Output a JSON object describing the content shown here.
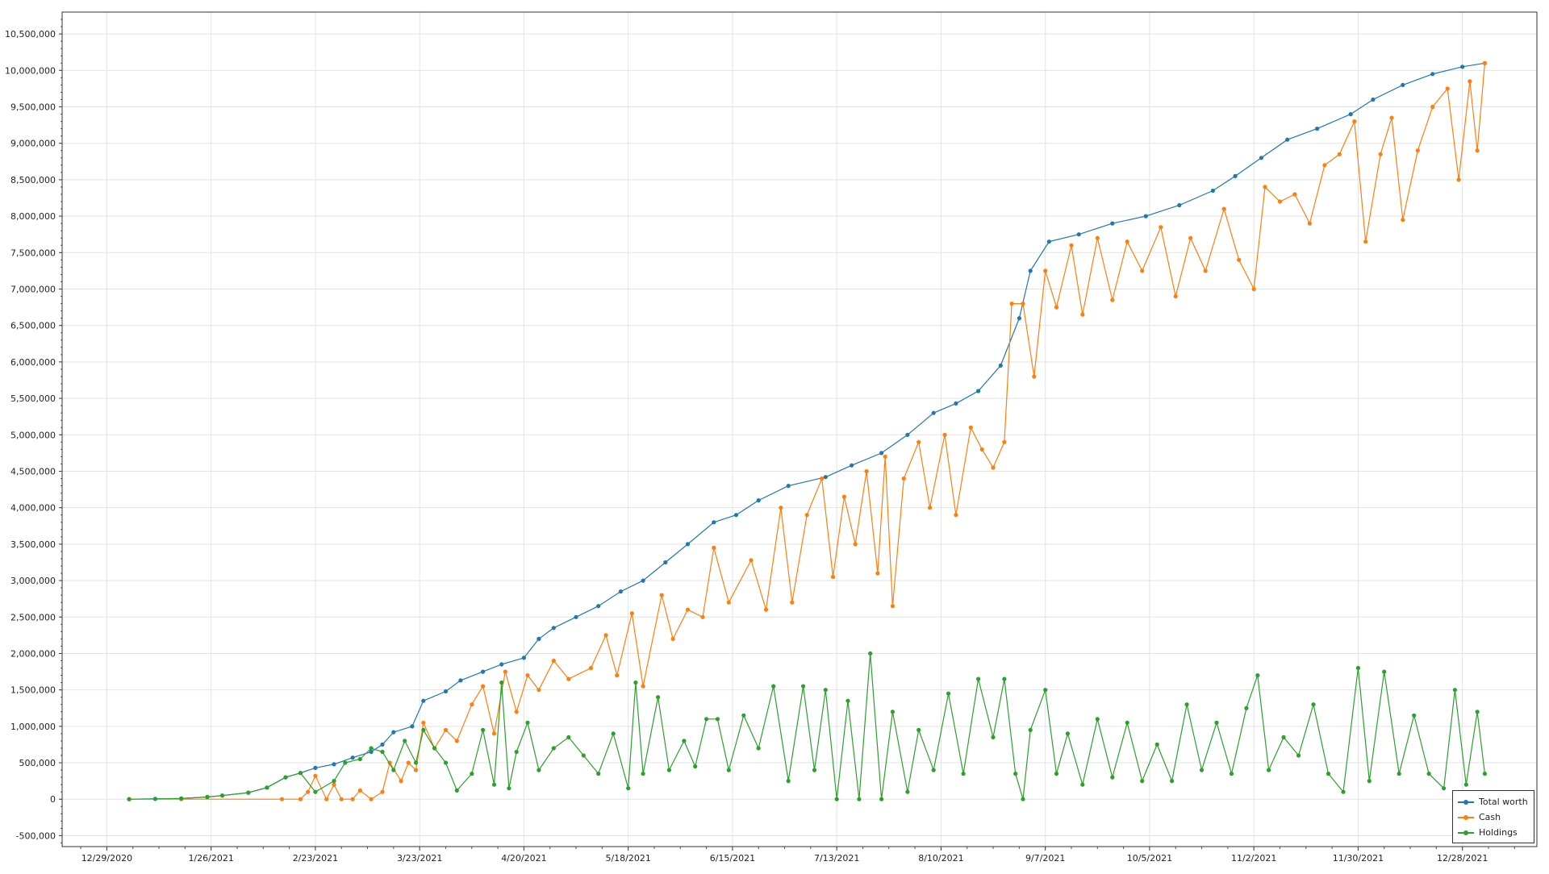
{
  "chart_data": {
    "type": "line",
    "title": "",
    "xlabel": "",
    "ylabel": "",
    "x_ticks": [
      "12/29/2020",
      "1/26/2021",
      "2/23/2021",
      "3/23/2021",
      "4/20/2021",
      "5/18/2021",
      "6/15/2021",
      "7/13/2021",
      "8/10/2021",
      "9/7/2021",
      "10/5/2021",
      "11/2/2021",
      "11/30/2021",
      "12/28/2021"
    ],
    "xlim": [
      "12/17/2020",
      "1/17/2022"
    ],
    "ylim": [
      -650000,
      10800000
    ],
    "y_ticks": [
      "-500,000",
      "0",
      "500,000",
      "1,000,000",
      "1,500,000",
      "2,000,000",
      "2,500,000",
      "3,000,000",
      "3,500,000",
      "4,000,000",
      "4,500,000",
      "5,000,000",
      "5,500,000",
      "6,000,000",
      "6,500,000",
      "7,000,000",
      "7,500,000",
      "8,000,000",
      "8,500,000",
      "9,000,000",
      "9,500,000",
      "10,000,000",
      "10,500,000"
    ],
    "grid": true,
    "legend_position": "bottom-right",
    "series": [
      {
        "name": "Total worth",
        "color": "#1f77b4",
        "points": [
          [
            "1/4/2021",
            0
          ],
          [
            "1/11/2021",
            5000
          ],
          [
            "1/18/2021",
            10000
          ],
          [
            "1/25/2021",
            30000
          ],
          [
            "1/29/2021",
            50000
          ],
          [
            "2/5/2021",
            90000
          ],
          [
            "2/10/2021",
            160000
          ],
          [
            "2/15/2021",
            300000
          ],
          [
            "2/19/2021",
            360000
          ],
          [
            "2/23/2021",
            430000
          ],
          [
            "2/28/2021",
            480000
          ],
          [
            "3/5/2021",
            570000
          ],
          [
            "3/10/2021",
            650000
          ],
          [
            "3/13/2021",
            750000
          ],
          [
            "3/16/2021",
            920000
          ],
          [
            "3/21/2021",
            1000000
          ],
          [
            "3/24/2021",
            1350000
          ],
          [
            "3/30/2021",
            1480000
          ],
          [
            "4/3/2021",
            1630000
          ],
          [
            "4/9/2021",
            1750000
          ],
          [
            "4/14/2021",
            1850000
          ],
          [
            "4/20/2021",
            1940000
          ],
          [
            "4/24/2021",
            2200000
          ],
          [
            "4/28/2021",
            2350000
          ],
          [
            "5/4/2021",
            2500000
          ],
          [
            "5/10/2021",
            2650000
          ],
          [
            "5/16/2021",
            2850000
          ],
          [
            "5/22/2021",
            3000000
          ],
          [
            "5/28/2021",
            3250000
          ],
          [
            "6/3/2021",
            3500000
          ],
          [
            "6/10/2021",
            3800000
          ],
          [
            "6/16/2021",
            3900000
          ],
          [
            "6/22/2021",
            4100000
          ],
          [
            "6/30/2021",
            4300000
          ],
          [
            "7/10/2021",
            4420000
          ],
          [
            "7/17/2021",
            4580000
          ],
          [
            "7/25/2021",
            4750000
          ],
          [
            "8/1/2021",
            5000000
          ],
          [
            "8/8/2021",
            5300000
          ],
          [
            "8/14/2021",
            5430000
          ],
          [
            "8/20/2021",
            5600000
          ],
          [
            "8/26/2021",
            5950000
          ],
          [
            "8/31/2021",
            6600000
          ],
          [
            "9/3/2021",
            7250000
          ],
          [
            "9/8/2021",
            7650000
          ],
          [
            "9/16/2021",
            7750000
          ],
          [
            "9/25/2021",
            7900000
          ],
          [
            "10/4/2021",
            8000000
          ],
          [
            "10/13/2021",
            8150000
          ],
          [
            "10/22/2021",
            8350000
          ],
          [
            "10/28/2021",
            8550000
          ],
          [
            "11/4/2021",
            8800000
          ],
          [
            "11/11/2021",
            9050000
          ],
          [
            "11/19/2021",
            9200000
          ],
          [
            "11/28/2021",
            9400000
          ],
          [
            "12/4/2021",
            9600000
          ],
          [
            "12/12/2021",
            9800000
          ],
          [
            "12/20/2021",
            9950000
          ],
          [
            "12/28/2021",
            10050000
          ],
          [
            "1/3/2022",
            10100000
          ]
        ]
      },
      {
        "name": "Cash",
        "color": "#ff7f0e",
        "points": [
          [
            "1/4/2021",
            0
          ],
          [
            "1/18/2021",
            0
          ],
          [
            "2/14/2021",
            0
          ],
          [
            "2/19/2021",
            0
          ],
          [
            "2/21/2021",
            100000
          ],
          [
            "2/23/2021",
            320000
          ],
          [
            "2/26/2021",
            0
          ],
          [
            "2/28/2021",
            200000
          ],
          [
            "3/2/2021",
            0
          ],
          [
            "3/5/2021",
            0
          ],
          [
            "3/7/2021",
            120000
          ],
          [
            "3/10/2021",
            0
          ],
          [
            "3/13/2021",
            100000
          ],
          [
            "3/15/2021",
            500000
          ],
          [
            "3/18/2021",
            250000
          ],
          [
            "3/20/2021",
            500000
          ],
          [
            "3/22/2021",
            400000
          ],
          [
            "3/24/2021",
            1050000
          ],
          [
            "3/27/2021",
            700000
          ],
          [
            "3/30/2021",
            950000
          ],
          [
            "4/2/2021",
            800000
          ],
          [
            "4/6/2021",
            1300000
          ],
          [
            "4/9/2021",
            1550000
          ],
          [
            "4/12/2021",
            900000
          ],
          [
            "4/15/2021",
            1750000
          ],
          [
            "4/18/2021",
            1200000
          ],
          [
            "4/21/2021",
            1700000
          ],
          [
            "4/24/2021",
            1500000
          ],
          [
            "4/28/2021",
            1900000
          ],
          [
            "5/2/2021",
            1650000
          ],
          [
            "5/8/2021",
            1800000
          ],
          [
            "5/12/2021",
            2250000
          ],
          [
            "5/15/2021",
            1700000
          ],
          [
            "5/19/2021",
            2550000
          ],
          [
            "5/22/2021",
            1550000
          ],
          [
            "5/27/2021",
            2800000
          ],
          [
            "5/30/2021",
            2200000
          ],
          [
            "6/3/2021",
            2600000
          ],
          [
            "6/7/2021",
            2500000
          ],
          [
            "6/10/2021",
            3450000
          ],
          [
            "6/14/2021",
            2700000
          ],
          [
            "6/20/2021",
            3280000
          ],
          [
            "6/24/2021",
            2600000
          ],
          [
            "6/28/2021",
            4000000
          ],
          [
            "7/1/2021",
            2700000
          ],
          [
            "7/5/2021",
            3900000
          ],
          [
            "7/9/2021",
            4400000
          ],
          [
            "7/12/2021",
            3050000
          ],
          [
            "7/15/2021",
            4150000
          ],
          [
            "7/18/2021",
            3500000
          ],
          [
            "7/21/2021",
            4500000
          ],
          [
            "7/24/2021",
            3100000
          ],
          [
            "7/26/2021",
            4700000
          ],
          [
            "7/28/2021",
            2650000
          ],
          [
            "7/31/2021",
            4400000
          ],
          [
            "8/4/2021",
            4900000
          ],
          [
            "8/7/2021",
            4000000
          ],
          [
            "8/11/2021",
            5000000
          ],
          [
            "8/14/2021",
            3900000
          ],
          [
            "8/18/2021",
            5100000
          ],
          [
            "8/21/2021",
            4800000
          ],
          [
            "8/24/2021",
            4550000
          ],
          [
            "8/27/2021",
            4900000
          ],
          [
            "8/29/2021",
            6800000
          ],
          [
            "9/1/2021",
            6800000
          ],
          [
            "9/4/2021",
            5800000
          ],
          [
            "9/7/2021",
            7250000
          ],
          [
            "9/10/2021",
            6750000
          ],
          [
            "9/14/2021",
            7600000
          ],
          [
            "9/17/2021",
            6650000
          ],
          [
            "9/21/2021",
            7700000
          ],
          [
            "9/25/2021",
            6850000
          ],
          [
            "9/29/2021",
            7650000
          ],
          [
            "10/3/2021",
            7250000
          ],
          [
            "10/8/2021",
            7850000
          ],
          [
            "10/12/2021",
            6900000
          ],
          [
            "10/16/2021",
            7700000
          ],
          [
            "10/20/2021",
            7250000
          ],
          [
            "10/25/2021",
            8100000
          ],
          [
            "10/29/2021",
            7400000
          ],
          [
            "11/2/2021",
            7000000
          ],
          [
            "11/5/2021",
            8400000
          ],
          [
            "11/9/2021",
            8200000
          ],
          [
            "11/13/2021",
            8300000
          ],
          [
            "11/17/2021",
            7900000
          ],
          [
            "11/21/2021",
            8700000
          ],
          [
            "11/25/2021",
            8850000
          ],
          [
            "11/29/2021",
            9300000
          ],
          [
            "12/2/2021",
            7650000
          ],
          [
            "12/6/2021",
            8850000
          ],
          [
            "12/9/2021",
            9350000
          ],
          [
            "12/12/2021",
            7950000
          ],
          [
            "12/16/2021",
            8900000
          ],
          [
            "12/20/2021",
            9500000
          ],
          [
            "12/24/2021",
            9750000
          ],
          [
            "12/27/2021",
            8500000
          ],
          [
            "12/30/2021",
            9850000
          ],
          [
            "1/1/2022",
            8900000
          ],
          [
            "1/3/2022",
            10100000
          ]
        ]
      },
      {
        "name": "Holdings",
        "color": "#2ca02c",
        "points": [
          [
            "1/4/2021",
            0
          ],
          [
            "1/11/2021",
            5000
          ],
          [
            "1/18/2021",
            10000
          ],
          [
            "1/25/2021",
            30000
          ],
          [
            "1/29/2021",
            50000
          ],
          [
            "2/5/2021",
            90000
          ],
          [
            "2/10/2021",
            160000
          ],
          [
            "2/15/2021",
            300000
          ],
          [
            "2/19/2021",
            360000
          ],
          [
            "2/23/2021",
            100000
          ],
          [
            "2/28/2021",
            250000
          ],
          [
            "3/3/2021",
            500000
          ],
          [
            "3/7/2021",
            550000
          ],
          [
            "3/10/2021",
            700000
          ],
          [
            "3/13/2021",
            650000
          ],
          [
            "3/16/2021",
            400000
          ],
          [
            "3/19/2021",
            800000
          ],
          [
            "3/22/2021",
            500000
          ],
          [
            "3/24/2021",
            950000
          ],
          [
            "3/27/2021",
            700000
          ],
          [
            "3/30/2021",
            500000
          ],
          [
            "4/2/2021",
            120000
          ],
          [
            "4/6/2021",
            350000
          ],
          [
            "4/9/2021",
            950000
          ],
          [
            "4/12/2021",
            200000
          ],
          [
            "4/14/2021",
            1600000
          ],
          [
            "4/16/2021",
            150000
          ],
          [
            "4/18/2021",
            650000
          ],
          [
            "4/21/2021",
            1050000
          ],
          [
            "4/24/2021",
            400000
          ],
          [
            "4/28/2021",
            700000
          ],
          [
            "5/2/2021",
            850000
          ],
          [
            "5/6/2021",
            600000
          ],
          [
            "5/10/2021",
            350000
          ],
          [
            "5/14/2021",
            900000
          ],
          [
            "5/18/2021",
            150000
          ],
          [
            "5/20/2021",
            1600000
          ],
          [
            "5/22/2021",
            350000
          ],
          [
            "5/26/2021",
            1400000
          ],
          [
            "5/29/2021",
            400000
          ],
          [
            "6/2/2021",
            800000
          ],
          [
            "6/5/2021",
            450000
          ],
          [
            "6/8/2021",
            1100000
          ],
          [
            "6/11/2021",
            1100000
          ],
          [
            "6/14/2021",
            400000
          ],
          [
            "6/18/2021",
            1150000
          ],
          [
            "6/22/2021",
            700000
          ],
          [
            "6/26/2021",
            1550000
          ],
          [
            "6/30/2021",
            250000
          ],
          [
            "7/4/2021",
            1550000
          ],
          [
            "7/7/2021",
            400000
          ],
          [
            "7/10/2021",
            1500000
          ],
          [
            "7/13/2021",
            0
          ],
          [
            "7/16/2021",
            1350000
          ],
          [
            "7/19/2021",
            0
          ],
          [
            "7/22/2021",
            2000000
          ],
          [
            "7/25/2021",
            0
          ],
          [
            "7/28/2021",
            1200000
          ],
          [
            "8/1/2021",
            100000
          ],
          [
            "8/4/2021",
            950000
          ],
          [
            "8/8/2021",
            400000
          ],
          [
            "8/12/2021",
            1450000
          ],
          [
            "8/16/2021",
            350000
          ],
          [
            "8/20/2021",
            1650000
          ],
          [
            "8/24/2021",
            850000
          ],
          [
            "8/27/2021",
            1650000
          ],
          [
            "8/30/2021",
            350000
          ],
          [
            "9/1/2021",
            0
          ],
          [
            "9/3/2021",
            950000
          ],
          [
            "9/7/2021",
            1500000
          ],
          [
            "9/10/2021",
            350000
          ],
          [
            "9/13/2021",
            900000
          ],
          [
            "9/17/2021",
            200000
          ],
          [
            "9/21/2021",
            1100000
          ],
          [
            "9/25/2021",
            300000
          ],
          [
            "9/29/2021",
            1050000
          ],
          [
            "10/3/2021",
            250000
          ],
          [
            "10/7/2021",
            750000
          ],
          [
            "10/11/2021",
            250000
          ],
          [
            "10/15/2021",
            1300000
          ],
          [
            "10/19/2021",
            400000
          ],
          [
            "10/23/2021",
            1050000
          ],
          [
            "10/27/2021",
            350000
          ],
          [
            "10/31/2021",
            1250000
          ],
          [
            "11/3/2021",
            1700000
          ],
          [
            "11/6/2021",
            400000
          ],
          [
            "11/10/2021",
            850000
          ],
          [
            "11/14/2021",
            600000
          ],
          [
            "11/18/2021",
            1300000
          ],
          [
            "11/22/2021",
            350000
          ],
          [
            "11/26/2021",
            100000
          ],
          [
            "11/30/2021",
            1800000
          ],
          [
            "12/3/2021",
            250000
          ],
          [
            "12/7/2021",
            1750000
          ],
          [
            "12/11/2021",
            350000
          ],
          [
            "12/15/2021",
            1150000
          ],
          [
            "12/19/2021",
            350000
          ],
          [
            "12/23/2021",
            150000
          ],
          [
            "12/26/2021",
            1500000
          ],
          [
            "12/29/2021",
            200000
          ],
          [
            "1/1/2022",
            1200000
          ],
          [
            "1/3/2022",
            350000
          ]
        ]
      }
    ]
  }
}
